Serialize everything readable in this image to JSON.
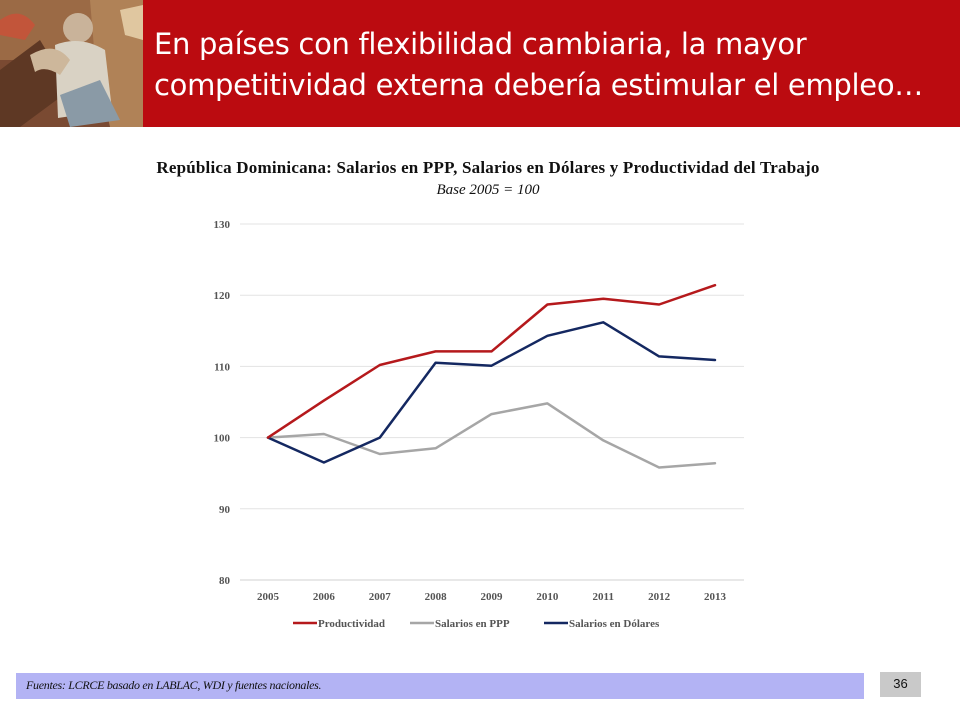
{
  "header": {
    "title_line1": "En países con flexibilidad cambiaria, la mayor",
    "title_line2": "competitividad externa debería estimular el empleo…",
    "background_color": "#bb0b10"
  },
  "chart_data": {
    "type": "line",
    "title": "República Dominicana: Salarios en PPP, Salarios en Dólares y Productividad del Trabajo",
    "subtitle": "Base 2005 = 100",
    "x": [
      "2005",
      "2006",
      "2007",
      "2008",
      "2009",
      "2010",
      "2011",
      "2012",
      "2013"
    ],
    "ylim": [
      80,
      130
    ],
    "yticks": [
      "80",
      "90",
      "100",
      "110",
      "120",
      "130"
    ],
    "grid": "horizontal",
    "legend_position": "bottom",
    "series": [
      {
        "name": "Productividad",
        "color": "#b5191c",
        "values": [
          100.0,
          105.2,
          110.2,
          112.1,
          112.1,
          118.7,
          119.5,
          118.7,
          121.4
        ]
      },
      {
        "name": "Salarios en PPP",
        "color": "#a6a6a6",
        "values": [
          100.0,
          100.5,
          97.7,
          98.5,
          103.3,
          104.8,
          99.6,
          95.8,
          96.4
        ]
      },
      {
        "name": "Salarios en Dólares",
        "color": "#142861",
        "values": [
          100.0,
          96.5,
          100.0,
          110.5,
          110.1,
          114.3,
          116.2,
          111.4,
          110.9
        ]
      }
    ]
  },
  "footer": {
    "source": "Fuentes: LCRCE basado en LABLAC, WDI y fuentes nacionales.",
    "page_number": "36"
  }
}
